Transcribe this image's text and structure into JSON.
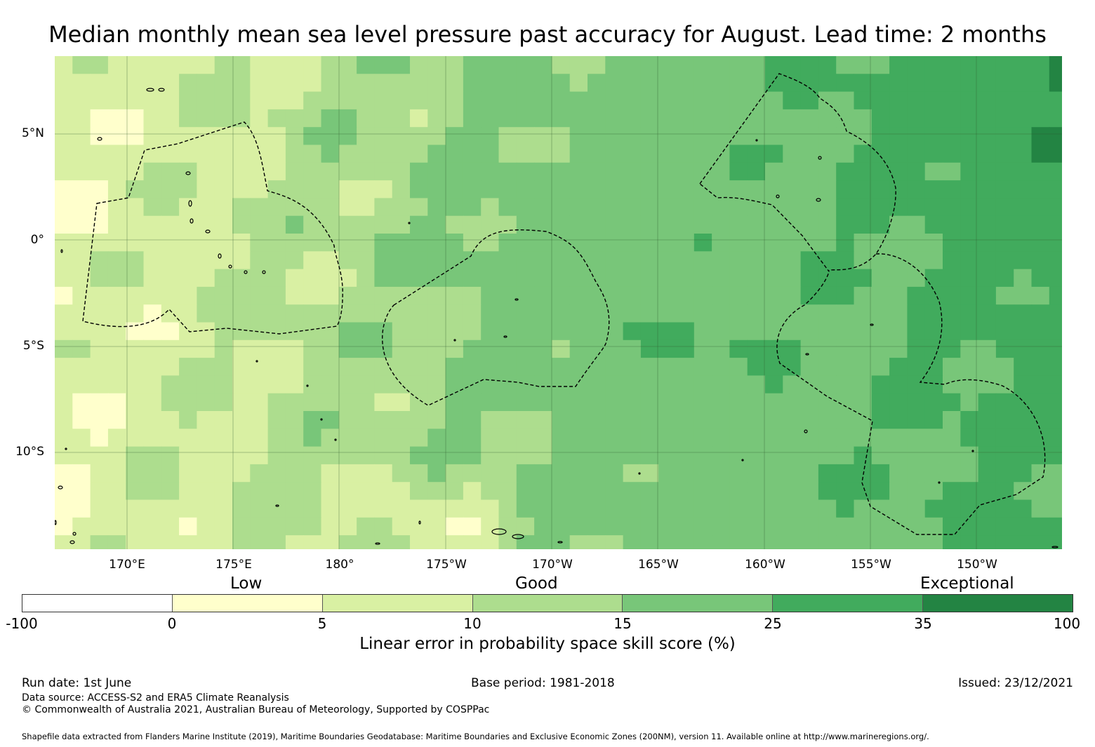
{
  "title": "Median monthly mean sea level pressure past accuracy for August. Lead time: 2 months",
  "lat_labels": [
    "5°N",
    "0°",
    "5°S",
    "10°S"
  ],
  "lon_labels": [
    "170°E",
    "175°E",
    "180°",
    "175°W",
    "170°W",
    "165°W",
    "160°W",
    "155°W",
    "150°W"
  ],
  "category_labels": [
    "Low",
    "Good",
    "Exceptional"
  ],
  "colorbar": {
    "ticks": [
      "-100",
      "0",
      "5",
      "10",
      "15",
      "25",
      "35",
      "100"
    ],
    "colors": [
      "#ffffff",
      "#ffffcc",
      "#d9f0a3",
      "#addd8e",
      "#78c679",
      "#41ab5d",
      "#238443"
    ],
    "title": "Linear error in probability space skill score (%)"
  },
  "footer": {
    "run_date": "Run date: 1st June",
    "base_period": "Base period: 1981-2018",
    "issued": "Issued: 23/12/2021",
    "data_source": "Data source: ACCESS-S2 and ERA5 Climate Reanalysis",
    "copyright": "© Commonwealth of Australia 2021, Australian Bureau of Meteorology, Supported by COSPPac",
    "shapefile": "Shapefile data extracted from Flanders Marine Institute (2019), Maritime Boundaries Geodatabase: Maritime Boundaries and Exclusive Economic Zones (200NM), version 11. Available online at http://www.marineregions.org/."
  }
}
